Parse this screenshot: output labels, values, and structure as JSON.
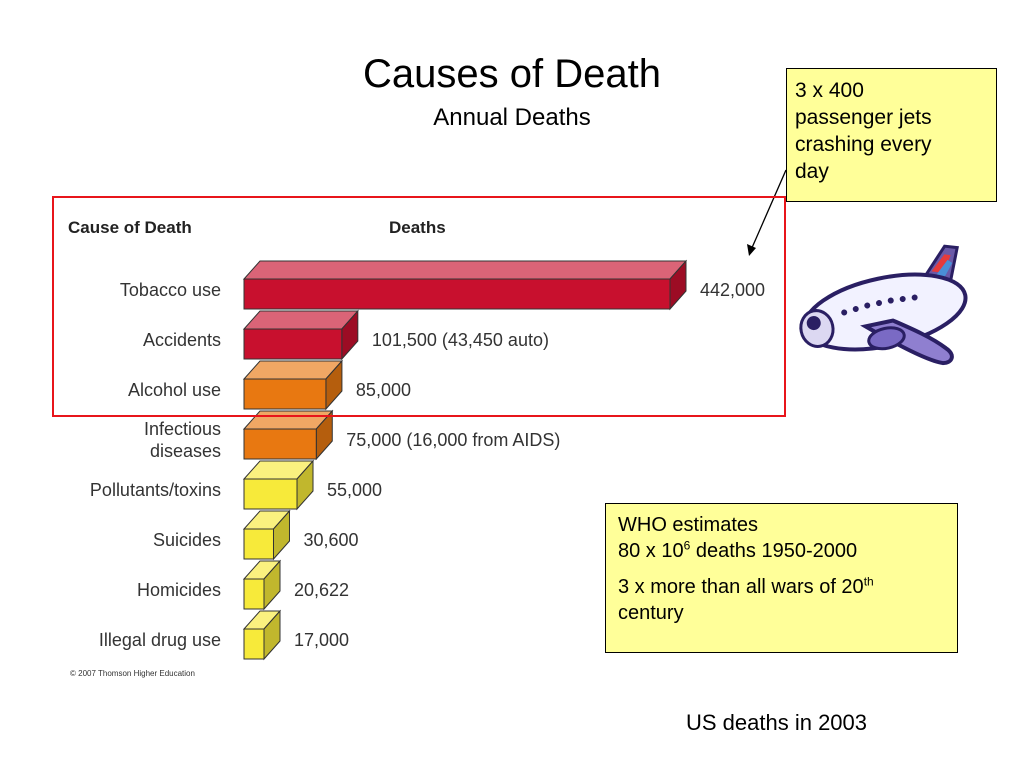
{
  "title": "Causes of Death",
  "subtitle": "Annual Deaths",
  "callout": {
    "lines": [
      "3 x 400",
      "passenger jets",
      "crashing every",
      "day"
    ]
  },
  "who_box": {
    "line1": "WHO estimates",
    "line2_pre": "80 x 10",
    "line2_sup": "6",
    "line2_post": " deaths 1950-2000",
    "line3_pre": "3 x more than all wars of 20",
    "line3_sup": "th",
    "line3_post": "century"
  },
  "footer": "US deaths in 2003",
  "chart_data": {
    "type": "bar",
    "orientation": "horizontal",
    "column_headers": [
      "Cause of Death",
      "Deaths"
    ],
    "categories": [
      "Tobacco use",
      "Accidents",
      "Alcohol use",
      "Infectious diseases",
      "Pollutants/toxins",
      "Suicides",
      "Homicides",
      "Illegal drug use"
    ],
    "category_lines": [
      [
        "Tobacco use"
      ],
      [
        "Accidents"
      ],
      [
        "Alcohol use"
      ],
      [
        "Infectious",
        "diseases"
      ],
      [
        "Pollutants/toxins"
      ],
      [
        "Suicides"
      ],
      [
        "Homicides"
      ],
      [
        "Illegal drug use"
      ]
    ],
    "values": [
      442000,
      101500,
      85000,
      75000,
      55000,
      30600,
      20622,
      17000
    ],
    "value_labels": [
      "442,000",
      "101,500 (43,450 auto)",
      "85,000",
      "75,000 (16,000 from AIDS)",
      "55,000",
      "30,600",
      "20,622",
      "17,000"
    ],
    "bar_colors": [
      "#c8102e",
      "#c8102e",
      "#e87811",
      "#e87811",
      "#f7ea3a",
      "#f7ea3a",
      "#f7ea3a",
      "#f7ea3a"
    ],
    "highlighted_categories": [
      "Tobacco use",
      "Accidents",
      "Alcohol use"
    ],
    "highlight_color": "#e8151b",
    "copyright": "© 2007 Thomson Higher Education"
  }
}
